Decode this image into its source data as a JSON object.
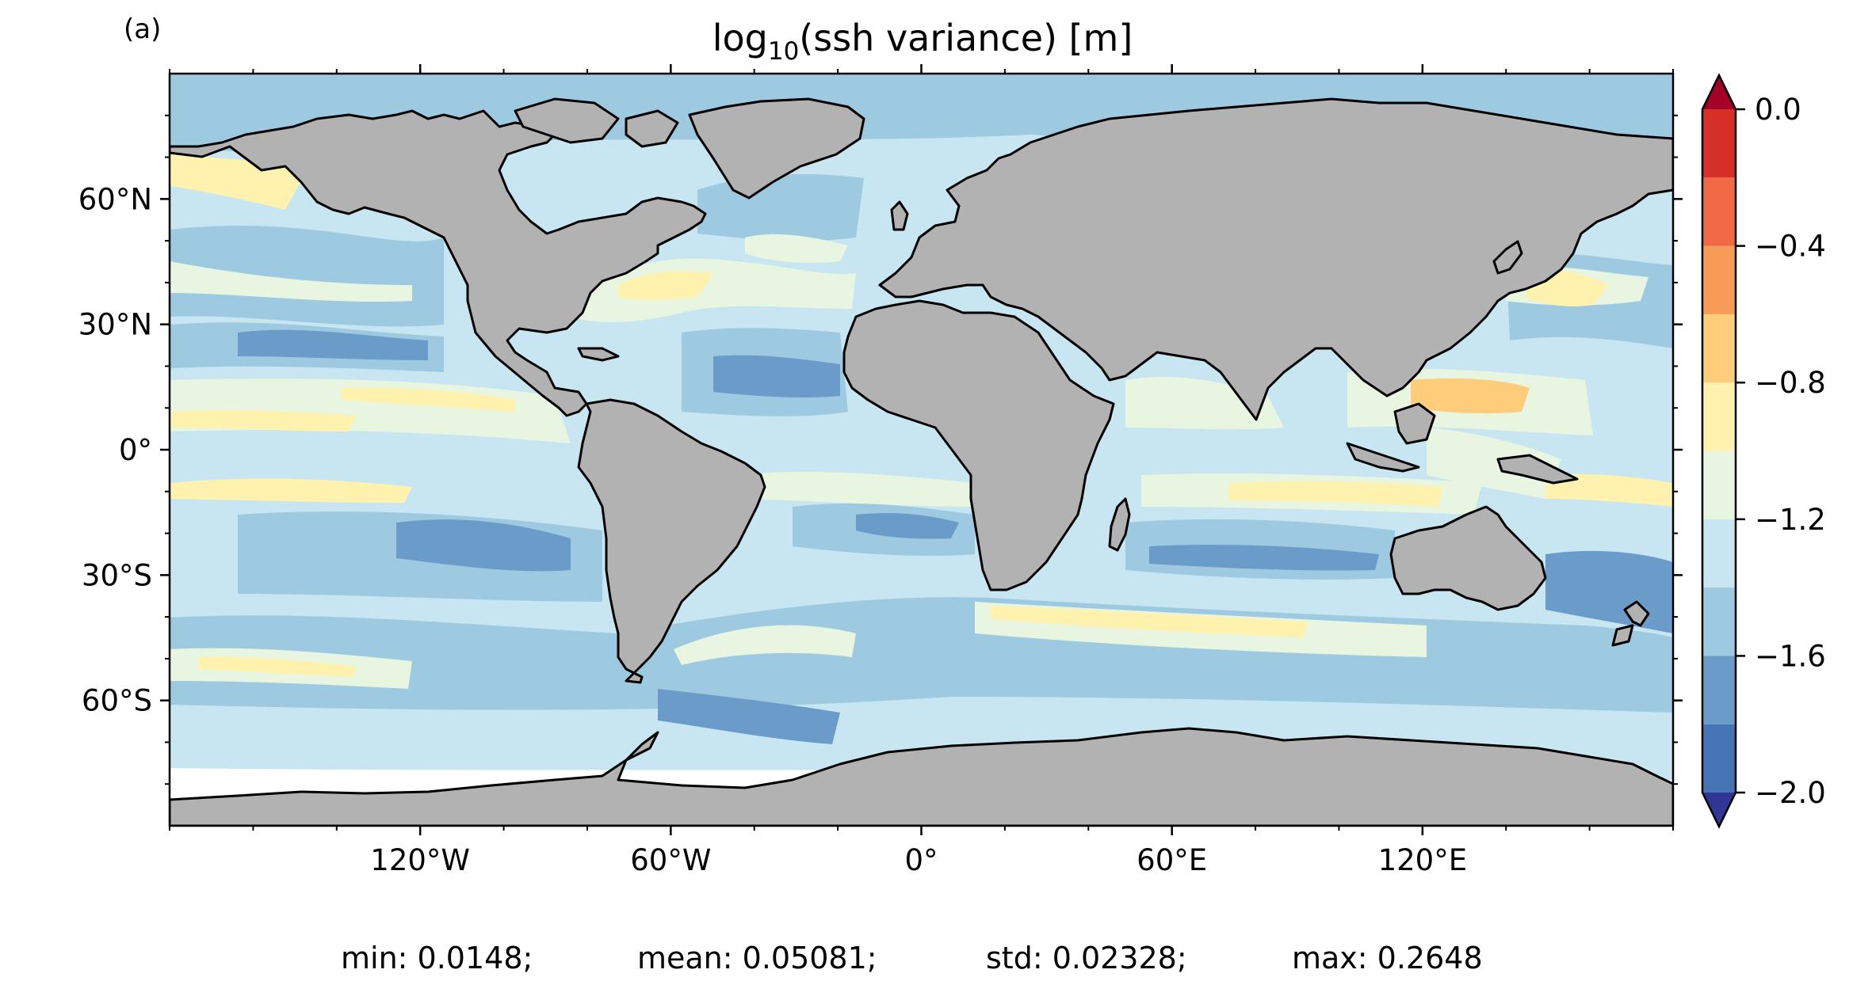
{
  "panel_label": "(a)",
  "chart_data": {
    "type": "heatmap",
    "title_main": "log",
    "title_sub": "10",
    "title_rest": "(ssh variance) [m]",
    "projection": "PlateCarree",
    "lon_range": [
      -180,
      180
    ],
    "lat_range": [
      -90,
      90
    ],
    "x_ticks": [
      {
        "lon": -120,
        "label": "120°W"
      },
      {
        "lon": -60,
        "label": "60°W"
      },
      {
        "lon": 0,
        "label": "0°"
      },
      {
        "lon": 60,
        "label": "60°E"
      },
      {
        "lon": 120,
        "label": "120°E"
      }
    ],
    "y_ticks": [
      {
        "lat": 60,
        "label": "60°N"
      },
      {
        "lat": 30,
        "label": "30°N"
      },
      {
        "lat": 0,
        "label": "0°"
      },
      {
        "lat": -30,
        "label": "30°S"
      },
      {
        "lat": -60,
        "label": "60°S"
      }
    ],
    "land_color": "#b2b2b2",
    "coastline_color": "#000000",
    "colorbar": {
      "colormap": "RdYlBu_r",
      "levels": [
        -2.0,
        -1.8,
        -1.6,
        -1.4,
        -1.2,
        -1.0,
        -0.8,
        -0.6,
        -0.4,
        -0.2,
        0.0
      ],
      "colors": [
        "#4575b4",
        "#6a9bc9",
        "#9ecae1",
        "#c7e6f1",
        "#e8f5e0",
        "#fff2ae",
        "#fdcd7b",
        "#f89a58",
        "#ef6a45",
        "#d73027"
      ],
      "under_color": "#313695",
      "over_color": "#a50026",
      "extend": "both",
      "tick_values": [
        0.0,
        -0.4,
        -0.8,
        -1.2,
        -1.6,
        -2.0
      ],
      "tick_labels": [
        "0.0",
        "−0.4",
        "−0.8",
        "−1.2",
        "−1.6",
        "−2.0"
      ]
    },
    "stats": {
      "min": "min: 0.0148;",
      "mean": "mean: 0.05081;",
      "std": "std: 0.02328;",
      "max": "max: 0.2648"
    }
  }
}
